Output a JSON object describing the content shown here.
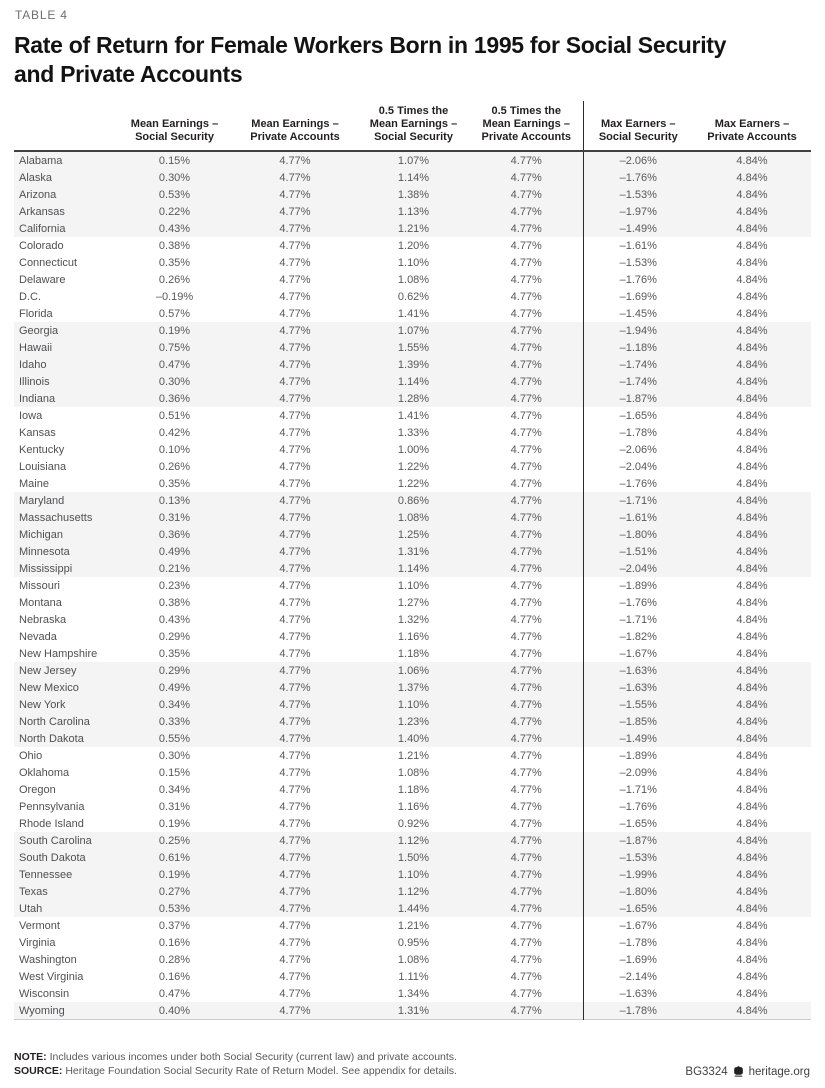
{
  "page": {
    "table_label": "TABLE 4",
    "title": "Rate of Return for Female Workers Born in 1995 for Social Security\nand Private Accounts"
  },
  "table": {
    "columns": [
      "",
      "Mean Earnings –\nSocial Security",
      "Mean Earnings –\nPrivate Accounts",
      "0.5 Times the\nMean Earnings –\nSocial Security",
      "0.5 Times the\nMean Earnings –\nPrivate Accounts",
      "Max Earners –\nSocial Security",
      "Max Earners –\nPrivate Accounts"
    ],
    "rows": [
      [
        "Alabama",
        "0.15%",
        "4.77%",
        "1.07%",
        "4.77%",
        "–2.06%",
        "4.84%"
      ],
      [
        "Alaska",
        "0.30%",
        "4.77%",
        "1.14%",
        "4.77%",
        "–1.76%",
        "4.84%"
      ],
      [
        "Arizona",
        "0.53%",
        "4.77%",
        "1.38%",
        "4.77%",
        "–1.53%",
        "4.84%"
      ],
      [
        "Arkansas",
        "0.22%",
        "4.77%",
        "1.13%",
        "4.77%",
        "–1.97%",
        "4.84%"
      ],
      [
        "California",
        "0.43%",
        "4.77%",
        "1.21%",
        "4.77%",
        "–1.49%",
        "4.84%"
      ],
      [
        "Colorado",
        "0.38%",
        "4.77%",
        "1.20%",
        "4.77%",
        "–1.61%",
        "4.84%"
      ],
      [
        "Connecticut",
        "0.35%",
        "4.77%",
        "1.10%",
        "4.77%",
        "–1.53%",
        "4.84%"
      ],
      [
        "Delaware",
        "0.26%",
        "4.77%",
        "1.08%",
        "4.77%",
        "–1.76%",
        "4.84%"
      ],
      [
        "D.C.",
        "–0.19%",
        "4.77%",
        "0.62%",
        "4.77%",
        "–1.69%",
        "4.84%"
      ],
      [
        "Florida",
        "0.57%",
        "4.77%",
        "1.41%",
        "4.77%",
        "–1.45%",
        "4.84%"
      ],
      [
        "Georgia",
        "0.19%",
        "4.77%",
        "1.07%",
        "4.77%",
        "–1.94%",
        "4.84%"
      ],
      [
        "Hawaii",
        "0.75%",
        "4.77%",
        "1.55%",
        "4.77%",
        "–1.18%",
        "4.84%"
      ],
      [
        "Idaho",
        "0.47%",
        "4.77%",
        "1.39%",
        "4.77%",
        "–1.74%",
        "4.84%"
      ],
      [
        "Illinois",
        "0.30%",
        "4.77%",
        "1.14%",
        "4.77%",
        "–1.74%",
        "4.84%"
      ],
      [
        "Indiana",
        "0.36%",
        "4.77%",
        "1.28%",
        "4.77%",
        "–1.87%",
        "4.84%"
      ],
      [
        "Iowa",
        "0.51%",
        "4.77%",
        "1.41%",
        "4.77%",
        "–1.65%",
        "4.84%"
      ],
      [
        "Kansas",
        "0.42%",
        "4.77%",
        "1.33%",
        "4.77%",
        "–1.78%",
        "4.84%"
      ],
      [
        "Kentucky",
        "0.10%",
        "4.77%",
        "1.00%",
        "4.77%",
        "–2.06%",
        "4.84%"
      ],
      [
        "Louisiana",
        "0.26%",
        "4.77%",
        "1.22%",
        "4.77%",
        "–2.04%",
        "4.84%"
      ],
      [
        "Maine",
        "0.35%",
        "4.77%",
        "1.22%",
        "4.77%",
        "–1.76%",
        "4.84%"
      ],
      [
        "Maryland",
        "0.13%",
        "4.77%",
        "0.86%",
        "4.77%",
        "–1.71%",
        "4.84%"
      ],
      [
        "Massachusetts",
        "0.31%",
        "4.77%",
        "1.08%",
        "4.77%",
        "–1.61%",
        "4.84%"
      ],
      [
        "Michigan",
        "0.36%",
        "4.77%",
        "1.25%",
        "4.77%",
        "–1.80%",
        "4.84%"
      ],
      [
        "Minnesota",
        "0.49%",
        "4.77%",
        "1.31%",
        "4.77%",
        "–1.51%",
        "4.84%"
      ],
      [
        "Mississippi",
        "0.21%",
        "4.77%",
        "1.14%",
        "4.77%",
        "–2.04%",
        "4.84%"
      ],
      [
        "Missouri",
        "0.23%",
        "4.77%",
        "1.10%",
        "4.77%",
        "–1.89%",
        "4.84%"
      ],
      [
        "Montana",
        "0.38%",
        "4.77%",
        "1.27%",
        "4.77%",
        "–1.76%",
        "4.84%"
      ],
      [
        "Nebraska",
        "0.43%",
        "4.77%",
        "1.32%",
        "4.77%",
        "–1.71%",
        "4.84%"
      ],
      [
        "Nevada",
        "0.29%",
        "4.77%",
        "1.16%",
        "4.77%",
        "–1.82%",
        "4.84%"
      ],
      [
        "New Hampshire",
        "0.35%",
        "4.77%",
        "1.18%",
        "4.77%",
        "–1.67%",
        "4.84%"
      ],
      [
        "New Jersey",
        "0.29%",
        "4.77%",
        "1.06%",
        "4.77%",
        "–1.63%",
        "4.84%"
      ],
      [
        "New Mexico",
        "0.49%",
        "4.77%",
        "1.37%",
        "4.77%",
        "–1.63%",
        "4.84%"
      ],
      [
        "New York",
        "0.34%",
        "4.77%",
        "1.10%",
        "4.77%",
        "–1.55%",
        "4.84%"
      ],
      [
        "North Carolina",
        "0.33%",
        "4.77%",
        "1.23%",
        "4.77%",
        "–1.85%",
        "4.84%"
      ],
      [
        "North Dakota",
        "0.55%",
        "4.77%",
        "1.40%",
        "4.77%",
        "–1.49%",
        "4.84%"
      ],
      [
        "Ohio",
        "0.30%",
        "4.77%",
        "1.21%",
        "4.77%",
        "–1.89%",
        "4.84%"
      ],
      [
        "Oklahoma",
        "0.15%",
        "4.77%",
        "1.08%",
        "4.77%",
        "–2.09%",
        "4.84%"
      ],
      [
        "Oregon",
        "0.34%",
        "4.77%",
        "1.18%",
        "4.77%",
        "–1.71%",
        "4.84%"
      ],
      [
        "Pennsylvania",
        "0.31%",
        "4.77%",
        "1.16%",
        "4.77%",
        "–1.76%",
        "4.84%"
      ],
      [
        "Rhode Island",
        "0.19%",
        "4.77%",
        "0.92%",
        "4.77%",
        "–1.65%",
        "4.84%"
      ],
      [
        "South Carolina",
        "0.25%",
        "4.77%",
        "1.12%",
        "4.77%",
        "–1.87%",
        "4.84%"
      ],
      [
        "South Dakota",
        "0.61%",
        "4.77%",
        "1.50%",
        "4.77%",
        "–1.53%",
        "4.84%"
      ],
      [
        "Tennessee",
        "0.19%",
        "4.77%",
        "1.10%",
        "4.77%",
        "–1.99%",
        "4.84%"
      ],
      [
        "Texas",
        "0.27%",
        "4.77%",
        "1.12%",
        "4.77%",
        "–1.80%",
        "4.84%"
      ],
      [
        "Utah",
        "0.53%",
        "4.77%",
        "1.44%",
        "4.77%",
        "–1.65%",
        "4.84%"
      ],
      [
        "Vermont",
        "0.37%",
        "4.77%",
        "1.21%",
        "4.77%",
        "–1.67%",
        "4.84%"
      ],
      [
        "Virginia",
        "0.16%",
        "4.77%",
        "0.95%",
        "4.77%",
        "–1.78%",
        "4.84%"
      ],
      [
        "Washington",
        "0.28%",
        "4.77%",
        "1.08%",
        "4.77%",
        "–1.69%",
        "4.84%"
      ],
      [
        "West Virginia",
        "0.16%",
        "4.77%",
        "1.11%",
        "4.77%",
        "–2.14%",
        "4.84%"
      ],
      [
        "Wisconsin",
        "0.47%",
        "4.77%",
        "1.34%",
        "4.77%",
        "–1.63%",
        "4.84%"
      ],
      [
        "Wyoming",
        "0.40%",
        "4.77%",
        "1.31%",
        "4.77%",
        "–1.78%",
        "4.84%"
      ]
    ],
    "band_group_size": 5
  },
  "footnotes": {
    "note_label": "NOTE:",
    "note_text": " Includes various incomes under both Social Security (current law) and private accounts.",
    "source_label": "SOURCE:",
    "source_text": " Heritage Foundation Social Security Rate of Return Model. See appendix for details."
  },
  "footer": {
    "doc_id": "BG3324",
    "site": "heritage.org",
    "logo_icon": "liberty-bell-icon"
  },
  "colors": {
    "band_background": "#f4f4f5",
    "header_text": "#231f20",
    "body_text": "#58585a",
    "header_rule": "#414042",
    "divider_line": "#2b2b2c"
  }
}
